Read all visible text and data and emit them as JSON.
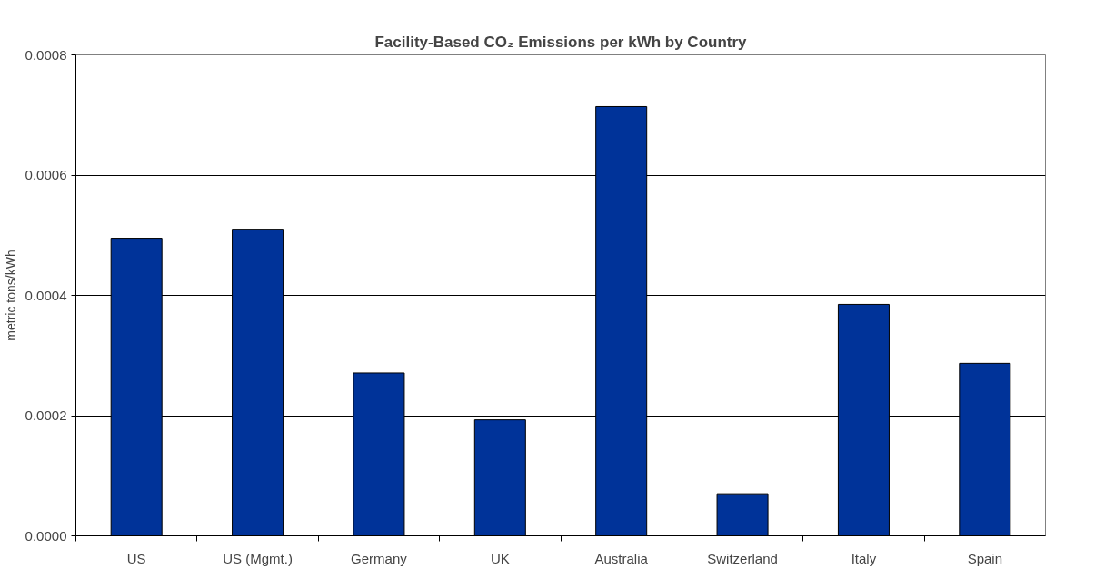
{
  "chart_data": {
    "type": "bar",
    "title": "Facility-Based CO₂ Emissions per kWh by Country",
    "ylabel": "metric tons/kWh",
    "categories": [
      "US",
      "US (Mgmt.)",
      "Germany",
      "UK",
      "Australia",
      "Switzerland",
      "Italy",
      "Spain"
    ],
    "values": [
      0.000495,
      0.00051,
      0.000271,
      0.000193,
      0.000714,
      7e-05,
      0.000385,
      0.000287
    ],
    "color": "#003399",
    "ylim": [
      0,
      0.0008
    ],
    "yticks": [
      {
        "value": 0,
        "label": "0.0000"
      },
      {
        "value": 0.0002,
        "label": "0.0002"
      },
      {
        "value": 0.0004,
        "label": "0.0004"
      },
      {
        "value": 0.0006,
        "label": "0.0006"
      },
      {
        "value": 0.0008,
        "label": "0.0008"
      }
    ],
    "grid": "y"
  }
}
